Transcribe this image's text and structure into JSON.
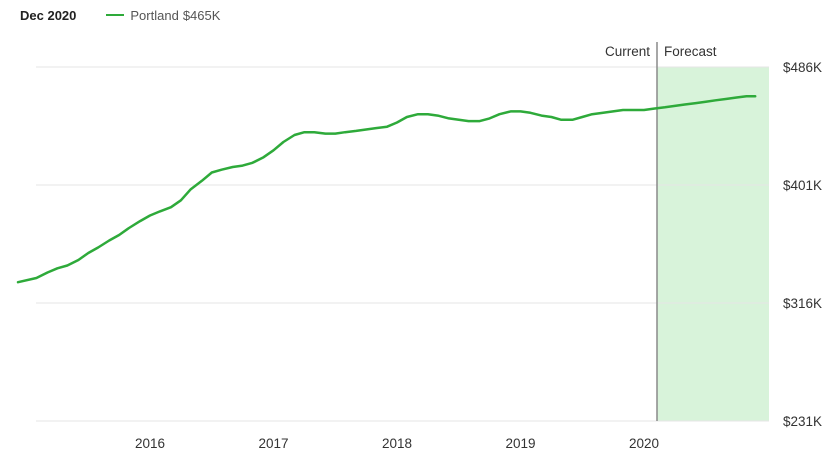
{
  "header": {
    "date": "Dec 2020",
    "legend_name": "Portland",
    "legend_value": "$465K"
  },
  "colors": {
    "line": "#2eaa3a",
    "forecast_band": "#d8f3da",
    "divider": "#8a8a8a",
    "grid": "#e6e6e6"
  },
  "chart_data": {
    "type": "line",
    "title": "",
    "xlabel": "",
    "ylabel": "",
    "ylim": [
      231,
      486
    ],
    "y_ticks": [
      {
        "value": 486,
        "label": "$486K"
      },
      {
        "value": 401,
        "label": "$401K"
      },
      {
        "value": 316,
        "label": "$316K"
      },
      {
        "value": 231,
        "label": "$231K"
      }
    ],
    "x_ticks": [
      {
        "value": 2016,
        "label": "2016"
      },
      {
        "value": 2017,
        "label": "2017"
      },
      {
        "value": 2018,
        "label": "2018"
      },
      {
        "value": 2019,
        "label": "2019"
      },
      {
        "value": 2020,
        "label": "2020"
      }
    ],
    "current_label": "Current",
    "forecast_label": "Forecast",
    "forecast_start": 2020.0,
    "x_end": 2020.9,
    "series": [
      {
        "name": "Portland",
        "color": "#2eaa3a",
        "x": [
          2015.0,
          2015.08,
          2015.17,
          2015.25,
          2015.33,
          2015.42,
          2015.5,
          2015.58,
          2015.67,
          2015.75,
          2015.83,
          2015.92,
          2016.0,
          2016.08,
          2016.17,
          2016.25,
          2016.33,
          2016.42,
          2016.5,
          2016.58,
          2016.67,
          2016.75,
          2016.83,
          2016.92,
          2017.0,
          2017.08,
          2017.17,
          2017.25,
          2017.33,
          2017.42,
          2017.5,
          2017.58,
          2017.67,
          2017.75,
          2017.83,
          2017.92,
          2018.0,
          2018.08,
          2018.17,
          2018.25,
          2018.33,
          2018.42,
          2018.5,
          2018.58,
          2018.67,
          2018.75,
          2018.83,
          2018.92,
          2019.0,
          2019.08,
          2019.17,
          2019.25,
          2019.33,
          2019.42,
          2019.5,
          2019.58,
          2019.67,
          2019.75,
          2019.83,
          2019.92,
          2020.0,
          2020.08,
          2020.17,
          2020.25,
          2020.33,
          2020.42,
          2020.5,
          2020.58,
          2020.67,
          2020.75,
          2020.83,
          2020.9
        ],
        "values": [
          331,
          334,
          338,
          341,
          343,
          347,
          352,
          356,
          361,
          365,
          370,
          375,
          379,
          382,
          385,
          390,
          398,
          404,
          410,
          412,
          414,
          415,
          417,
          421,
          426,
          432,
          437,
          439,
          439,
          438,
          438,
          439,
          440,
          441,
          442,
          443,
          446,
          450,
          452,
          452,
          451,
          449,
          448,
          447,
          447,
          449,
          452,
          454,
          454,
          453,
          451,
          450,
          448,
          448,
          450,
          452,
          453,
          454,
          455,
          455,
          455,
          456,
          457,
          458,
          459,
          460,
          461,
          462,
          463,
          464,
          465,
          465
        ]
      }
    ],
    "grid": true,
    "legend_position": "top-left"
  }
}
